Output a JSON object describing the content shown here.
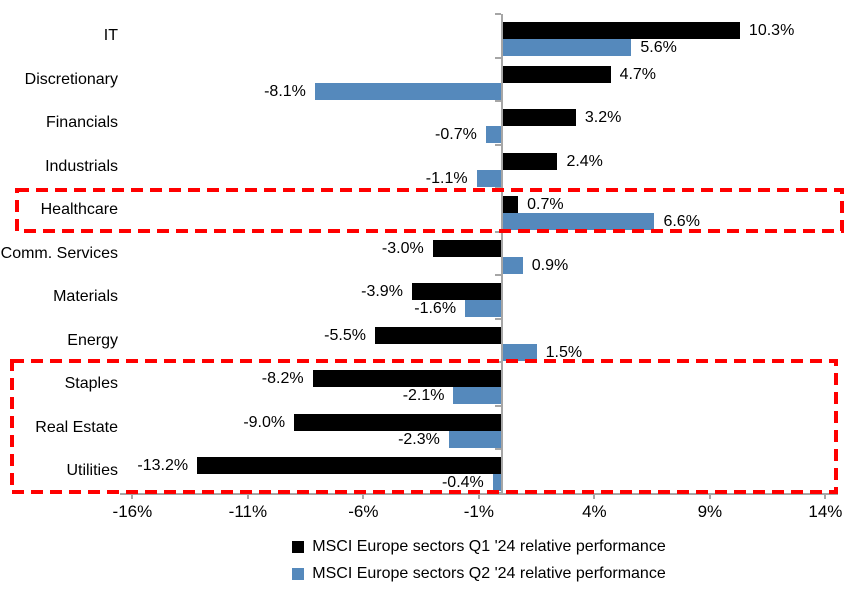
{
  "chart_data": {
    "type": "bar",
    "orientation": "horizontal",
    "title": "",
    "background": "#FFFFFF",
    "axis_color": "#A6A6A6",
    "categories": [
      "IT",
      "Discretionary",
      "Financials",
      "Industrials",
      "Healthcare",
      "Comm. Services",
      "Materials",
      "Energy",
      "Staples",
      "Real Estate",
      "Utilities"
    ],
    "series": [
      {
        "name": "MSCI Europe sectors Q1 '24 relative performance",
        "color": "#000000",
        "values": [
          10.3,
          4.7,
          3.2,
          2.4,
          0.7,
          -3.0,
          -3.9,
          -5.5,
          -8.2,
          -9.0,
          -13.2
        ],
        "labels": [
          "10.3%",
          "4.7%",
          "3.2%",
          "2.4%",
          "0.7%",
          "-3.0%",
          "-3.9%",
          "-5.5%",
          "-8.2%",
          "-9.0%",
          "-13.2%"
        ]
      },
      {
        "name": "MSCI Europe sectors Q2 '24 relative performance",
        "color": "#5589BC",
        "values": [
          5.6,
          -8.1,
          -0.7,
          -1.1,
          6.6,
          0.9,
          -1.6,
          1.5,
          -2.1,
          -2.3,
          -0.4
        ],
        "labels": [
          "5.6%",
          "-8.1%",
          "-0.7%",
          "-1.1%",
          "6.6%",
          "0.9%",
          "-1.6%",
          "1.5%",
          "-2.1%",
          "-2.3%",
          "-0.4%"
        ]
      }
    ],
    "x_axis": {
      "tick_labels": [
        "-16%",
        "-11%",
        "-6%",
        "-1%",
        "4%",
        "9%",
        "14%"
      ],
      "tick_values": [
        -16,
        -11,
        -6,
        -1,
        4,
        9,
        14
      ],
      "min": -16.5,
      "max": 14.6,
      "grid": false
    },
    "data_labels": true,
    "highlights": [
      {
        "type": "dashed-box",
        "color": "#FF0000",
        "rows": [
          "Healthcare"
        ]
      },
      {
        "type": "dashed-box",
        "color": "#FF0000",
        "rows": [
          "Staples",
          "Real Estate",
          "Utilities"
        ]
      }
    ],
    "legend": {
      "position": "bottom",
      "entries": [
        {
          "label": "MSCI Europe sectors Q1 '24 relative performance",
          "color": "#000000"
        },
        {
          "label": "MSCI Europe sectors Q2 '24 relative performance",
          "color": "#5589BC"
        }
      ]
    }
  }
}
